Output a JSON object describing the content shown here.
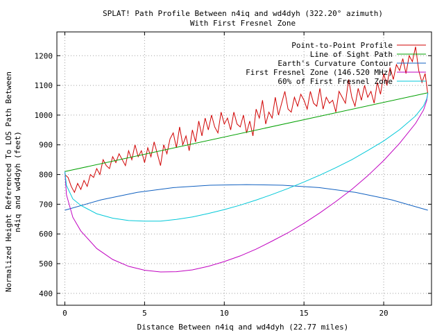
{
  "chart_data": {
    "type": "line",
    "title": "SPLAT! Path Profile Between n4iq and wd4dyh (322.20° azimuth)",
    "subtitle": "With First Fresnel Zone",
    "xlabel": "Distance Between n4iq and wd4dyh (22.77 miles)",
    "ylabel_line1": "Normalized Height Referenced To LOS Path Between",
    "ylabel_line2": "n4iq and wd4dyh (feet)",
    "xlim": [
      -0.5,
      23
    ],
    "ylim": [
      360,
      1280
    ],
    "xticks": [
      0,
      5,
      10,
      15,
      20
    ],
    "yticks": [
      400,
      500,
      600,
      700,
      800,
      900,
      1000,
      1100,
      1200
    ],
    "grid": true,
    "legend_position": "top-right",
    "series": [
      {
        "name": "Point-to-Point Profile",
        "color": "#d00000",
        "x": [
          0,
          0.2,
          0.4,
          0.6,
          0.8,
          1.0,
          1.2,
          1.4,
          1.6,
          1.8,
          2.0,
          2.2,
          2.4,
          2.6,
          2.8,
          3.0,
          3.2,
          3.4,
          3.6,
          3.8,
          4.0,
          4.2,
          4.4,
          4.6,
          4.8,
          5.0,
          5.2,
          5.4,
          5.6,
          5.8,
          6.0,
          6.2,
          6.4,
          6.6,
          6.8,
          7.0,
          7.2,
          7.4,
          7.6,
          7.8,
          8.0,
          8.2,
          8.4,
          8.6,
          8.8,
          9.0,
          9.2,
          9.4,
          9.6,
          9.8,
          10.0,
          10.2,
          10.4,
          10.6,
          10.8,
          11.0,
          11.2,
          11.4,
          11.6,
          11.8,
          12.0,
          12.2,
          12.4,
          12.6,
          12.8,
          13.0,
          13.2,
          13.4,
          13.6,
          13.8,
          14.0,
          14.2,
          14.4,
          14.6,
          14.8,
          15.0,
          15.2,
          15.4,
          15.6,
          15.8,
          16.0,
          16.2,
          16.4,
          16.6,
          16.8,
          17.0,
          17.2,
          17.4,
          17.6,
          17.8,
          18.0,
          18.2,
          18.4,
          18.6,
          18.8,
          19.0,
          19.2,
          19.4,
          19.6,
          19.8,
          20.0,
          20.2,
          20.4,
          20.6,
          20.8,
          21.0,
          21.2,
          21.4,
          21.6,
          21.8,
          22.0,
          22.2,
          22.4,
          22.6,
          22.77
        ],
        "y": [
          800,
          790,
          760,
          740,
          770,
          750,
          780,
          760,
          800,
          790,
          820,
          800,
          850,
          830,
          820,
          860,
          840,
          870,
          850,
          830,
          880,
          850,
          900,
          860,
          880,
          840,
          890,
          860,
          910,
          870,
          830,
          900,
          870,
          920,
          940,
          890,
          960,
          900,
          930,
          880,
          950,
          910,
          980,
          930,
          990,
          950,
          1000,
          960,
          940,
          1010,
          970,
          990,
          950,
          1010,
          970,
          960,
          1000,
          940,
          980,
          930,
          1020,
          990,
          1050,
          970,
          1010,
          990,
          1060,
          1000,
          1040,
          1080,
          1020,
          1010,
          1060,
          1030,
          1070,
          1050,
          1020,
          1080,
          1040,
          1030,
          1090,
          1020,
          1060,
          1040,
          1050,
          1010,
          1080,
          1060,
          1040,
          1120,
          1060,
          1030,
          1090,
          1050,
          1100,
          1060,
          1080,
          1040,
          1110,
          1070,
          1140,
          1100,
          1160,
          1120,
          1170,
          1150,
          1190,
          1140,
          1200,
          1180,
          1230,
          1150,
          1110,
          1140,
          1070
        ]
      },
      {
        "name": "Line of Sight Path",
        "color": "#00a000",
        "x": [
          0,
          22.77
        ],
        "y": [
          810,
          1075
        ]
      },
      {
        "name": "Earth's Curvature Contour",
        "color": "#1060c0",
        "x": [
          0,
          2.28,
          4.55,
          6.83,
          9.11,
          11.39,
          13.66,
          15.94,
          18.22,
          20.49,
          22.77
        ],
        "y": [
          680,
          715,
          740,
          756,
          764,
          766,
          764,
          756,
          740,
          715,
          680
        ]
      },
      {
        "name": "First Fresnel Zone (146.520 MHz)",
        "color": "#c000c0",
        "x": [
          0,
          0.1,
          0.5,
          1.0,
          2.0,
          3.0,
          4.0,
          5.0,
          6.0,
          7.0,
          8.0,
          9.0,
          10.0,
          11.0,
          12.0,
          13.0,
          14.0,
          15.0,
          16.0,
          17.0,
          18.0,
          19.0,
          20.0,
          21.0,
          22.0,
          22.5,
          22.7,
          22.77
        ],
        "y": [
          810,
          732,
          656,
          610,
          551,
          514,
          491,
          478,
          472,
          473,
          479,
          491,
          507,
          526,
          549,
          576,
          604,
          636,
          671,
          709,
          750,
          796,
          847,
          905,
          972,
          1017,
          1049,
          1075
        ]
      },
      {
        "name": "60% of First Fresnel Zone",
        "color": "#00c8d8",
        "x": [
          0,
          0.1,
          0.5,
          1.0,
          2.0,
          3.0,
          4.0,
          5.0,
          6.0,
          7.0,
          8.0,
          9.0,
          10.0,
          11.0,
          12.0,
          13.0,
          14.0,
          15.0,
          16.0,
          17.0,
          18.0,
          19.0,
          20.0,
          21.0,
          22.0,
          22.5,
          22.7,
          22.77
        ],
        "y": [
          810,
          763,
          718,
          696,
          668,
          653,
          645,
          643,
          643,
          649,
          657,
          669,
          682,
          697,
          714,
          733,
          753,
          775,
          798,
          823,
          850,
          881,
          913,
          951,
          997,
          1031,
          1055,
          1075
        ]
      }
    ]
  }
}
